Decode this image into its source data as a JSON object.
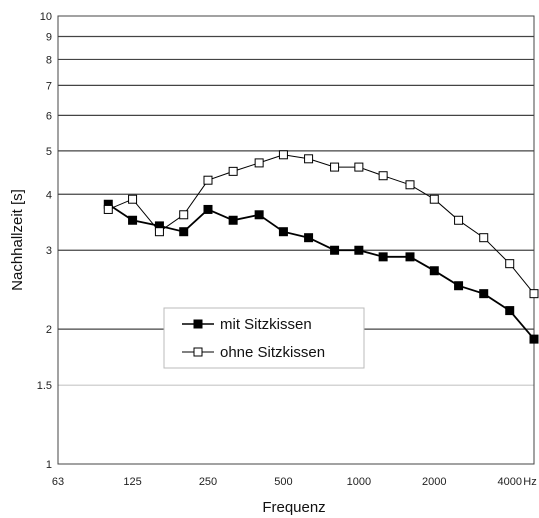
{
  "chart_data": {
    "type": "line",
    "xlabel": "Frequenz",
    "ylabel": "Nachhallzeit [s]",
    "x_unit": "Hz",
    "x_scale": "log",
    "y_scale": "log",
    "xlim": [
      63,
      5000
    ],
    "ylim": [
      1,
      10
    ],
    "x_ticks": [
      "63",
      "125",
      "250",
      "500",
      "1000",
      "2000",
      "4000"
    ],
    "y_ticks": [
      "1",
      "1.5",
      "2",
      "3",
      "4",
      "5",
      "6",
      "7",
      "8",
      "9",
      "10"
    ],
    "grid": "horizontal",
    "legend_position": "lower-center",
    "x": [
      100,
      125,
      160,
      200,
      250,
      315,
      400,
      500,
      630,
      800,
      1000,
      1250,
      1600,
      2000,
      2500,
      3150,
      4000,
      5000
    ],
    "series": [
      {
        "name": "mit Sitzkissen",
        "marker": "filled-square",
        "color": "#000000",
        "values": [
          3.8,
          3.5,
          3.4,
          3.3,
          3.7,
          3.5,
          3.6,
          3.3,
          3.2,
          3.0,
          3.0,
          2.9,
          2.9,
          2.7,
          2.5,
          2.4,
          2.2,
          1.9
        ]
      },
      {
        "name": "ohne Sitzkissen",
        "marker": "open-square",
        "color": "#000000",
        "values": [
          3.7,
          3.9,
          3.3,
          3.6,
          4.3,
          4.5,
          4.7,
          4.9,
          4.8,
          4.6,
          4.6,
          4.4,
          4.2,
          3.9,
          3.5,
          3.2,
          2.8,
          2.4
        ]
      }
    ]
  }
}
